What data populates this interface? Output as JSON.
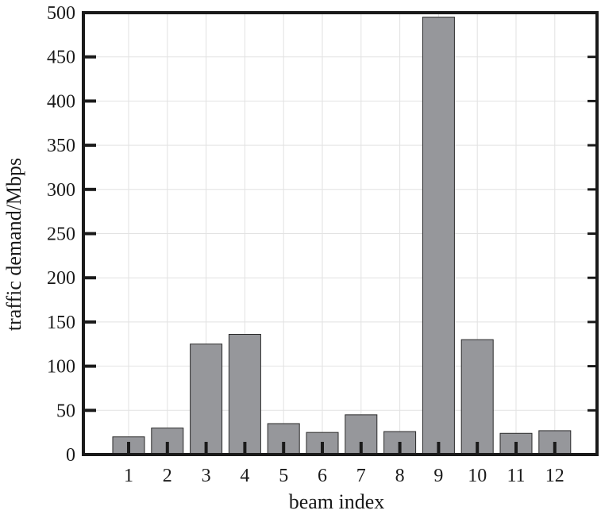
{
  "chart_data": {
    "type": "bar",
    "categories": [
      "1",
      "2",
      "3",
      "4",
      "5",
      "6",
      "7",
      "8",
      "9",
      "10",
      "11",
      "12"
    ],
    "values": [
      20,
      30,
      125,
      136,
      35,
      25,
      45,
      26,
      495,
      130,
      24,
      27
    ],
    "xlabel": "beam index",
    "ylabel": "traffic demand/Mbps",
    "ylim": [
      0,
      500
    ],
    "yticks": [
      0,
      50,
      100,
      150,
      200,
      250,
      300,
      350,
      400,
      450,
      500
    ],
    "grid": true,
    "bar_color": "#96979b",
    "bar_edge_color": "#2a2a2a",
    "axis_color": "#1a1a1a",
    "grid_color": "#e2e2e2"
  }
}
